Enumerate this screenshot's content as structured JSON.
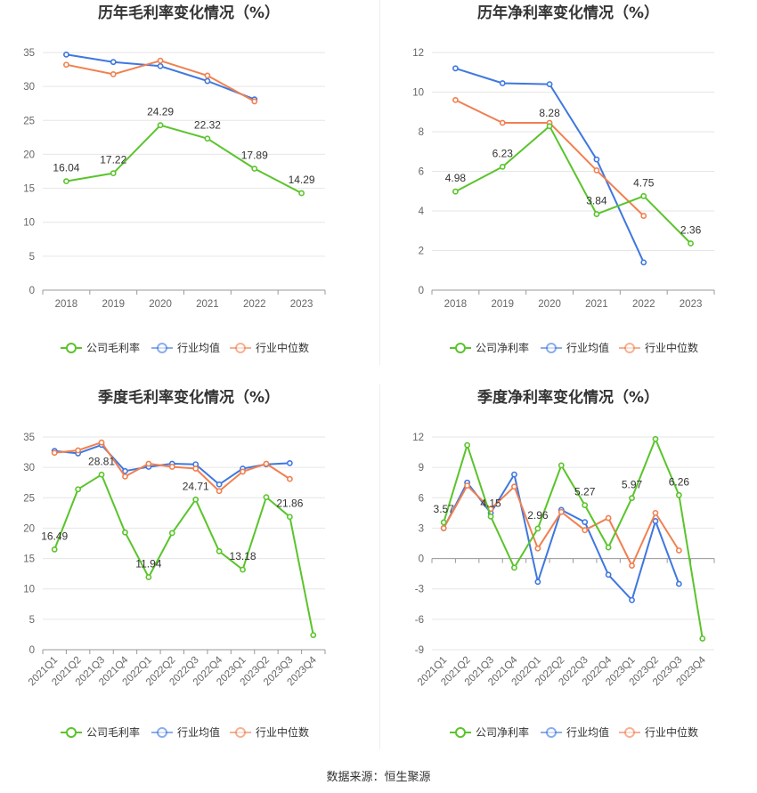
{
  "source_text": "数据来源：恒生聚源",
  "colors": {
    "company": "#5ac42b",
    "avg": "#3f77e0",
    "median": "#f08050",
    "grid": "#e6e6e6",
    "axis": "#999999"
  },
  "chart_data": [
    {
      "type": "line",
      "title": "历年毛利率变化情况（%）",
      "categories": [
        "2018",
        "2019",
        "2020",
        "2021",
        "2022",
        "2023"
      ],
      "ylim": [
        0,
        35
      ],
      "yticks": [
        0,
        5,
        10,
        15,
        20,
        25,
        30,
        35
      ],
      "rotate_x": false,
      "grid": true,
      "legend_position": "bottom",
      "series": [
        {
          "name": "公司毛利率",
          "key": "company",
          "values": [
            16.04,
            17.22,
            24.29,
            22.32,
            17.89,
            14.29
          ],
          "labels": [
            "16.04",
            "17.22",
            "24.29",
            "22.32",
            "17.89",
            "14.29"
          ]
        },
        {
          "name": "行业均值",
          "key": "avg",
          "values": [
            34.7,
            33.6,
            33.0,
            30.8,
            28.1,
            null
          ]
        },
        {
          "name": "行业中位数",
          "key": "median",
          "values": [
            33.2,
            31.8,
            33.8,
            31.6,
            27.8,
            null
          ]
        }
      ]
    },
    {
      "type": "line",
      "title": "历年净利率变化情况（%）",
      "categories": [
        "2018",
        "2019",
        "2020",
        "2021",
        "2022",
        "2023"
      ],
      "ylim": [
        0,
        12
      ],
      "yticks": [
        0,
        2,
        4,
        6,
        8,
        10,
        12
      ],
      "rotate_x": false,
      "grid": true,
      "legend_position": "bottom",
      "series": [
        {
          "name": "公司净利率",
          "key": "company",
          "values": [
            4.98,
            6.23,
            8.28,
            3.84,
            4.75,
            2.36
          ],
          "labels": [
            "4.98",
            "6.23",
            "8.28",
            "3.84",
            "4.75",
            "2.36"
          ]
        },
        {
          "name": "行业均值",
          "key": "avg",
          "values": [
            11.2,
            10.45,
            10.4,
            6.6,
            1.4,
            null
          ]
        },
        {
          "name": "行业中位数",
          "key": "median",
          "values": [
            9.6,
            8.45,
            8.45,
            6.05,
            3.75,
            null
          ]
        }
      ]
    },
    {
      "type": "line",
      "title": "季度毛利率变化情况（%）",
      "categories": [
        "2021Q1",
        "2021Q2",
        "2021Q3",
        "2021Q4",
        "2022Q1",
        "2022Q2",
        "2022Q3",
        "2022Q4",
        "2023Q1",
        "2023Q2",
        "2023Q3",
        "2023Q4"
      ],
      "ylim": [
        0,
        35
      ],
      "yticks": [
        0,
        5,
        10,
        15,
        20,
        25,
        30,
        35
      ],
      "rotate_x": true,
      "grid": true,
      "legend_position": "bottom",
      "series": [
        {
          "name": "公司毛利率",
          "key": "company",
          "values": [
            16.49,
            26.4,
            28.81,
            19.3,
            11.94,
            19.2,
            24.71,
            16.2,
            13.18,
            25.1,
            21.86,
            2.4
          ],
          "labels": [
            "16.49",
            "",
            "28.81",
            "",
            "11.94",
            "",
            "24.71",
            "",
            "13.18",
            "",
            "21.86",
            ""
          ]
        },
        {
          "name": "行业均值",
          "key": "avg",
          "values": [
            32.7,
            32.3,
            33.7,
            29.4,
            30.1,
            30.6,
            30.5,
            27.2,
            29.8,
            30.5,
            30.7,
            null
          ]
        },
        {
          "name": "行业中位数",
          "key": "median",
          "values": [
            32.4,
            32.8,
            34.1,
            28.5,
            30.6,
            30.1,
            29.8,
            26.1,
            29.3,
            30.6,
            28.1,
            null
          ]
        }
      ]
    },
    {
      "type": "line",
      "title": "季度净利率变化情况（%）",
      "categories": [
        "2021Q1",
        "2021Q2",
        "2021Q3",
        "2021Q4",
        "2022Q1",
        "2022Q2",
        "2022Q3",
        "2022Q4",
        "2023Q1",
        "2023Q2",
        "2023Q3",
        "2023Q4"
      ],
      "ylim": [
        -9,
        12
      ],
      "yticks": [
        -9,
        -6,
        -3,
        0,
        3,
        6,
        9,
        12
      ],
      "rotate_x": true,
      "grid": true,
      "legend_position": "bottom",
      "series": [
        {
          "name": "公司净利率",
          "key": "company",
          "values": [
            3.57,
            11.2,
            4.15,
            -0.9,
            2.96,
            9.2,
            5.27,
            1.1,
            5.97,
            11.8,
            6.26,
            -7.9
          ],
          "labels": [
            "3.57",
            "",
            "4.15",
            "",
            "2.96",
            "",
            "5.27",
            "",
            "5.97",
            "",
            "6.26",
            ""
          ]
        },
        {
          "name": "行业均值",
          "key": "avg",
          "values": [
            3.0,
            7.5,
            4.5,
            8.3,
            -2.3,
            4.8,
            3.6,
            -1.6,
            -4.1,
            3.7,
            -2.5,
            null
          ]
        },
        {
          "name": "行业中位数",
          "key": "median",
          "values": [
            3.0,
            7.2,
            4.9,
            7.1,
            1.0,
            4.6,
            2.8,
            4.0,
            -0.7,
            4.5,
            0.8,
            null
          ]
        }
      ]
    }
  ]
}
